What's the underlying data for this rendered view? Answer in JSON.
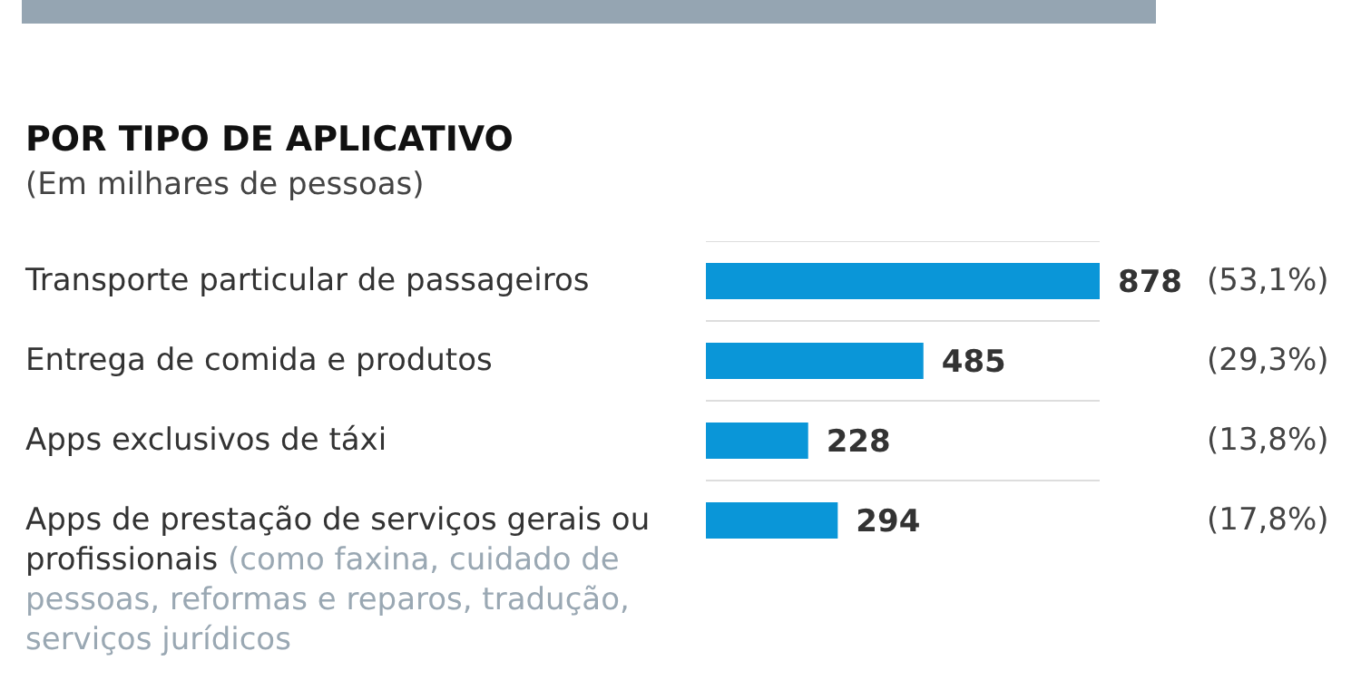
{
  "chart_data": {
    "type": "bar",
    "orientation": "horizontal",
    "title": "POR TIPO DE APLICATIVO",
    "subtitle": "(Em milhares de pessoas)",
    "categories": [
      "Transporte particular de passageiros",
      "Entrega de comida e produtos",
      "Apps exclusivos de táxi",
      "Apps de prestação de serviços gerais ou profissionais (como faxina, cuidado de pessoas, reformas e reparos, tradução, serviços jurídicos"
    ],
    "values": [
      878,
      485,
      228,
      294
    ],
    "color": "#0a96d8",
    "data_labels": true,
    "grid": "y",
    "tick_labels": "y",
    "annotations": [
      "(53,1%)",
      "(29,3%)",
      "(13,8%)",
      "(17,8%)"
    ]
  }
}
